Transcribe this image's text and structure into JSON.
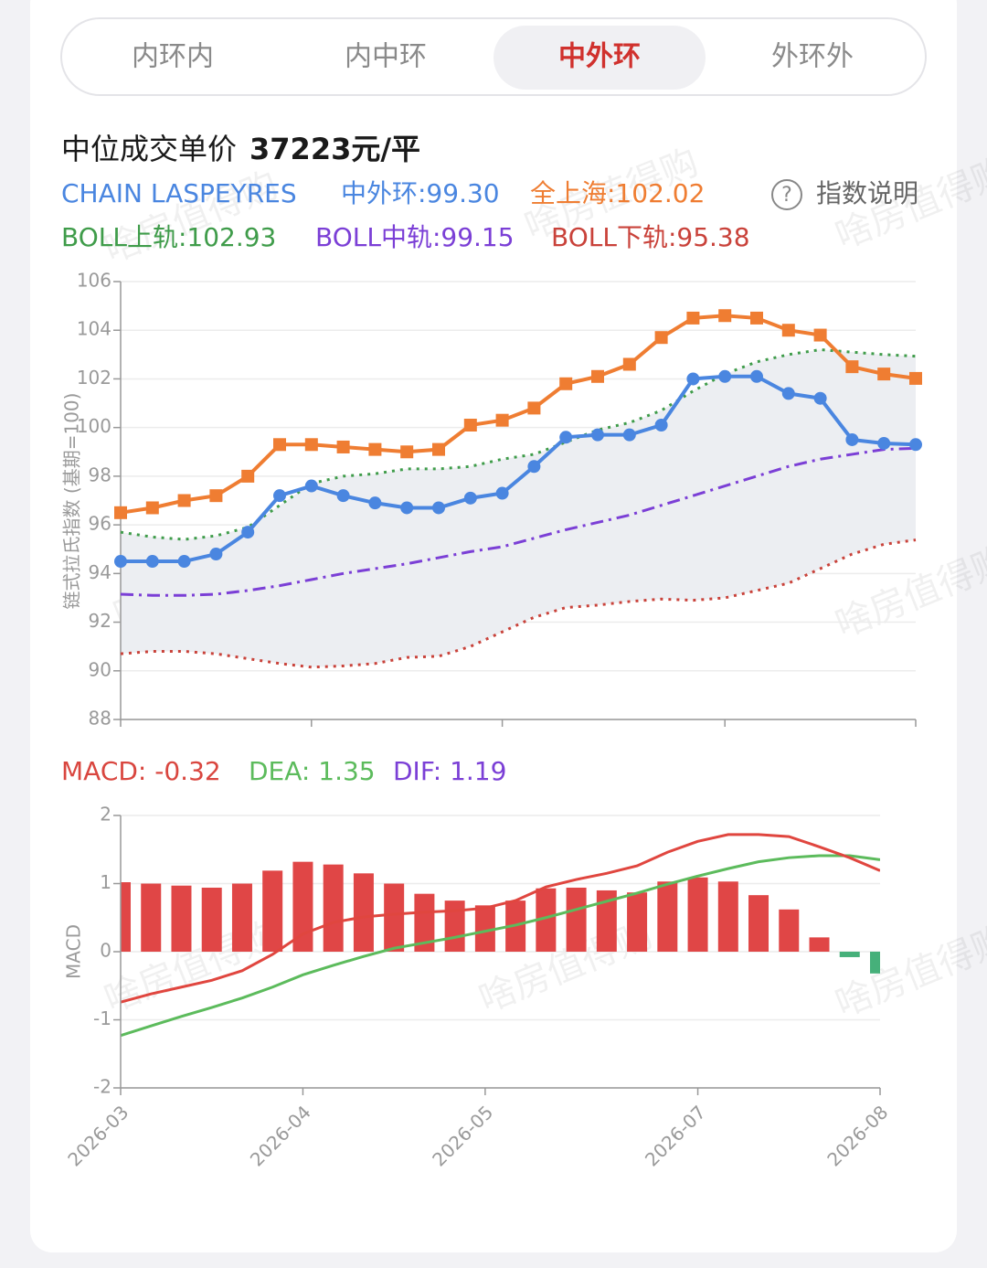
{
  "tabs": [
    "内环内",
    "内中环",
    "中外环",
    "外环外"
  ],
  "active_tab": 2,
  "help": "指数说明",
  "watermark": "啥房值得购",
  "chart_data": [
    {
      "type": "line",
      "title": "中位成交单价",
      "title_value": "37223元/平",
      "index_name": "CHAIN LASPEYRES",
      "y_label": "链式拉氏指数 (基期=100)",
      "ylim": [
        88,
        106
      ],
      "yticks": [
        88,
        90,
        92,
        94,
        96,
        98,
        100,
        102,
        104,
        106
      ],
      "grid": true,
      "band": {
        "series": [
          2,
          4
        ],
        "color": "#eceef2"
      },
      "series": [
        {
          "name": "中外环:99.30",
          "color": "#4a86e0",
          "marker": "circle",
          "dash": "solid",
          "values": [
            94.5,
            94.5,
            94.5,
            94.8,
            95.7,
            97.2,
            97.6,
            97.2,
            96.9,
            96.7,
            96.7,
            97.1,
            97.3,
            98.4,
            99.6,
            99.7,
            99.7,
            100.1,
            102.0,
            102.1,
            102.1,
            101.4,
            101.2,
            99.5,
            99.35,
            99.3
          ]
        },
        {
          "name": "全上海:102.02",
          "color": "#ef7d32",
          "marker": "square",
          "dash": "solid",
          "values": [
            96.5,
            96.7,
            97.0,
            97.2,
            98.0,
            99.3,
            99.3,
            99.2,
            99.1,
            99.0,
            99.1,
            100.1,
            100.3,
            100.8,
            101.8,
            102.1,
            102.6,
            103.7,
            104.5,
            104.6,
            104.5,
            104.0,
            103.8,
            102.5,
            102.2,
            102.02
          ]
        },
        {
          "name": "BOLL上轨:102.93",
          "color": "#3f9c4a",
          "marker": "none",
          "dash": "dotted",
          "values": [
            95.7,
            95.5,
            95.4,
            95.55,
            95.9,
            96.8,
            97.7,
            98.0,
            98.1,
            98.3,
            98.3,
            98.4,
            98.7,
            98.9,
            99.4,
            99.9,
            100.2,
            100.7,
            101.5,
            102.2,
            102.7,
            103.0,
            103.2,
            103.1,
            103.0,
            102.93
          ]
        },
        {
          "name": "BOLL中轨:99.15",
          "color": "#7b3fd6",
          "marker": "none",
          "dash": "dashdot",
          "values": [
            93.15,
            93.1,
            93.1,
            93.15,
            93.3,
            93.5,
            93.75,
            94.0,
            94.2,
            94.4,
            94.65,
            94.9,
            95.1,
            95.45,
            95.8,
            96.1,
            96.4,
            96.8,
            97.2,
            97.6,
            98.0,
            98.4,
            98.7,
            98.9,
            99.1,
            99.15
          ]
        },
        {
          "name": "BOLL下轨:95.38",
          "color": "#c9423a",
          "marker": "none",
          "dash": "dotted",
          "values": [
            90.7,
            90.8,
            90.8,
            90.7,
            90.5,
            90.3,
            90.15,
            90.2,
            90.3,
            90.55,
            90.6,
            91.0,
            91.6,
            92.2,
            92.6,
            92.7,
            92.85,
            92.95,
            92.9,
            93.0,
            93.3,
            93.6,
            94.2,
            94.8,
            95.2,
            95.38
          ]
        }
      ]
    },
    {
      "type": "bar_line",
      "y_label": "MACD",
      "categories": [
        "2026-03",
        null,
        null,
        null,
        null,
        null,
        "2026-04",
        null,
        null,
        null,
        null,
        null,
        "2026-05",
        null,
        null,
        null,
        null,
        null,
        null,
        "2026-07",
        null,
        null,
        null,
        null,
        null,
        "2026-08"
      ],
      "ylim": [
        -2,
        2
      ],
      "yticks": [
        -2,
        -1,
        0,
        1,
        2
      ],
      "grid": true,
      "series": [
        {
          "name": "MACD: -0.32",
          "kind": "bar",
          "color": "#e04646",
          "negative_color": "#46b07a",
          "values": [
            1.02,
            1.0,
            0.97,
            0.94,
            1.0,
            1.19,
            1.32,
            1.28,
            1.15,
            1.0,
            0.85,
            0.75,
            0.68,
            0.75,
            0.93,
            0.94,
            0.9,
            0.87,
            1.03,
            1.09,
            1.03,
            0.83,
            0.62,
            0.21,
            -0.08,
            -0.32
          ]
        },
        {
          "name": "DEA: 1.35",
          "kind": "line",
          "color": "#5cbb5c",
          "values": [
            -1.23,
            -1.09,
            -0.95,
            -0.82,
            -0.68,
            -0.52,
            -0.34,
            -0.2,
            -0.07,
            0.05,
            0.13,
            0.21,
            0.3,
            0.39,
            0.5,
            0.62,
            0.74,
            0.86,
            0.99,
            1.11,
            1.22,
            1.32,
            1.38,
            1.41,
            1.41,
            1.35
          ]
        },
        {
          "name": "DIF: 1.19",
          "kind": "line",
          "color": "#7b3fd6",
          "line_color": "#e0463f",
          "values": [
            -0.74,
            -0.62,
            -0.52,
            -0.42,
            -0.28,
            -0.04,
            0.26,
            0.43,
            0.51,
            0.55,
            0.58,
            0.6,
            0.64,
            0.75,
            0.95,
            1.06,
            1.15,
            1.26,
            1.46,
            1.62,
            1.72,
            1.72,
            1.69,
            1.54,
            1.38,
            1.19
          ]
        }
      ]
    }
  ]
}
